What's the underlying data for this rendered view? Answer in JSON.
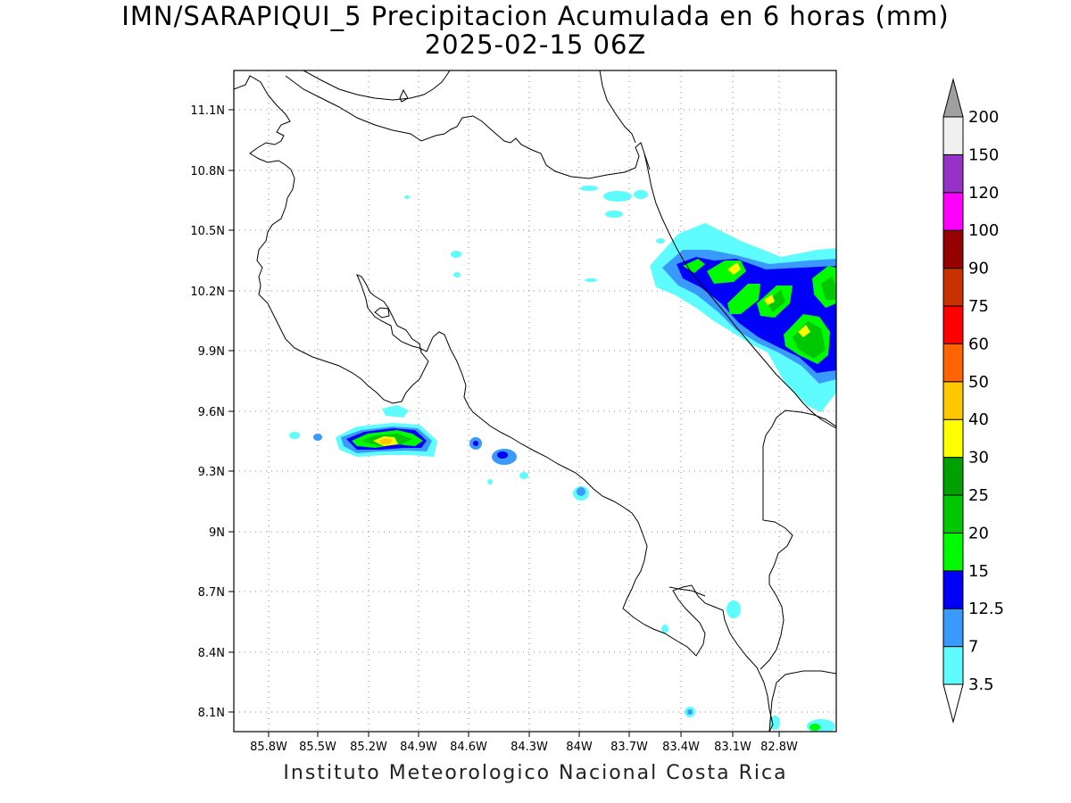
{
  "title": {
    "line1": "IMN/SARAPIQUI_5 Precipitacion Acumulada en 6 horas (mm)",
    "line2": "2025-02-15 06Z"
  },
  "footer": "Instituto Meteorologico Nacional Costa Rica",
  "map": {
    "lon_range": [
      -85.98,
      -82.58
    ],
    "lat_range": [
      8.01,
      11.34
    ],
    "lat_ticks": [
      "11.1N",
      "10.8N",
      "10.5N",
      "10.2N",
      "9.9N",
      "9.6N",
      "9.3N",
      "9N",
      "8.7N",
      "8.4N",
      "8.1N"
    ],
    "lon_ticks": [
      "85.8W",
      "85.5W",
      "85.2W",
      "84.9W",
      "84.6W",
      "84.3W",
      "84W",
      "83.7W",
      "83.4W",
      "83.1W",
      "82.8W"
    ],
    "grid": "dotted",
    "coastlines_color": "#000000"
  },
  "colorbar": {
    "levels": [
      "3.5",
      "7",
      "12.5",
      "15",
      "20",
      "25",
      "30",
      "40",
      "50",
      "60",
      "75",
      "90",
      "100",
      "120",
      "150",
      "200"
    ],
    "colors": [
      "#5efbff",
      "#3a9afb",
      "#0000fa",
      "#00fa00",
      "#00c800",
      "#00a000",
      "#ffff00",
      "#ffc800",
      "#ff6400",
      "#ff0000",
      "#c83200",
      "#960000",
      "#ff00ff",
      "#9632c8",
      "#f0f0f0",
      "#a0a0a0"
    ]
  },
  "precipitation_colors": {
    "light": "#5efbff",
    "moderate": "#3a9afb",
    "heavy": "#0000fa",
    "bright_green": "#00fa00",
    "green": "#00c800",
    "dark_green": "#00a000",
    "yellow": "#ffff00",
    "orange": "#ffc800"
  }
}
